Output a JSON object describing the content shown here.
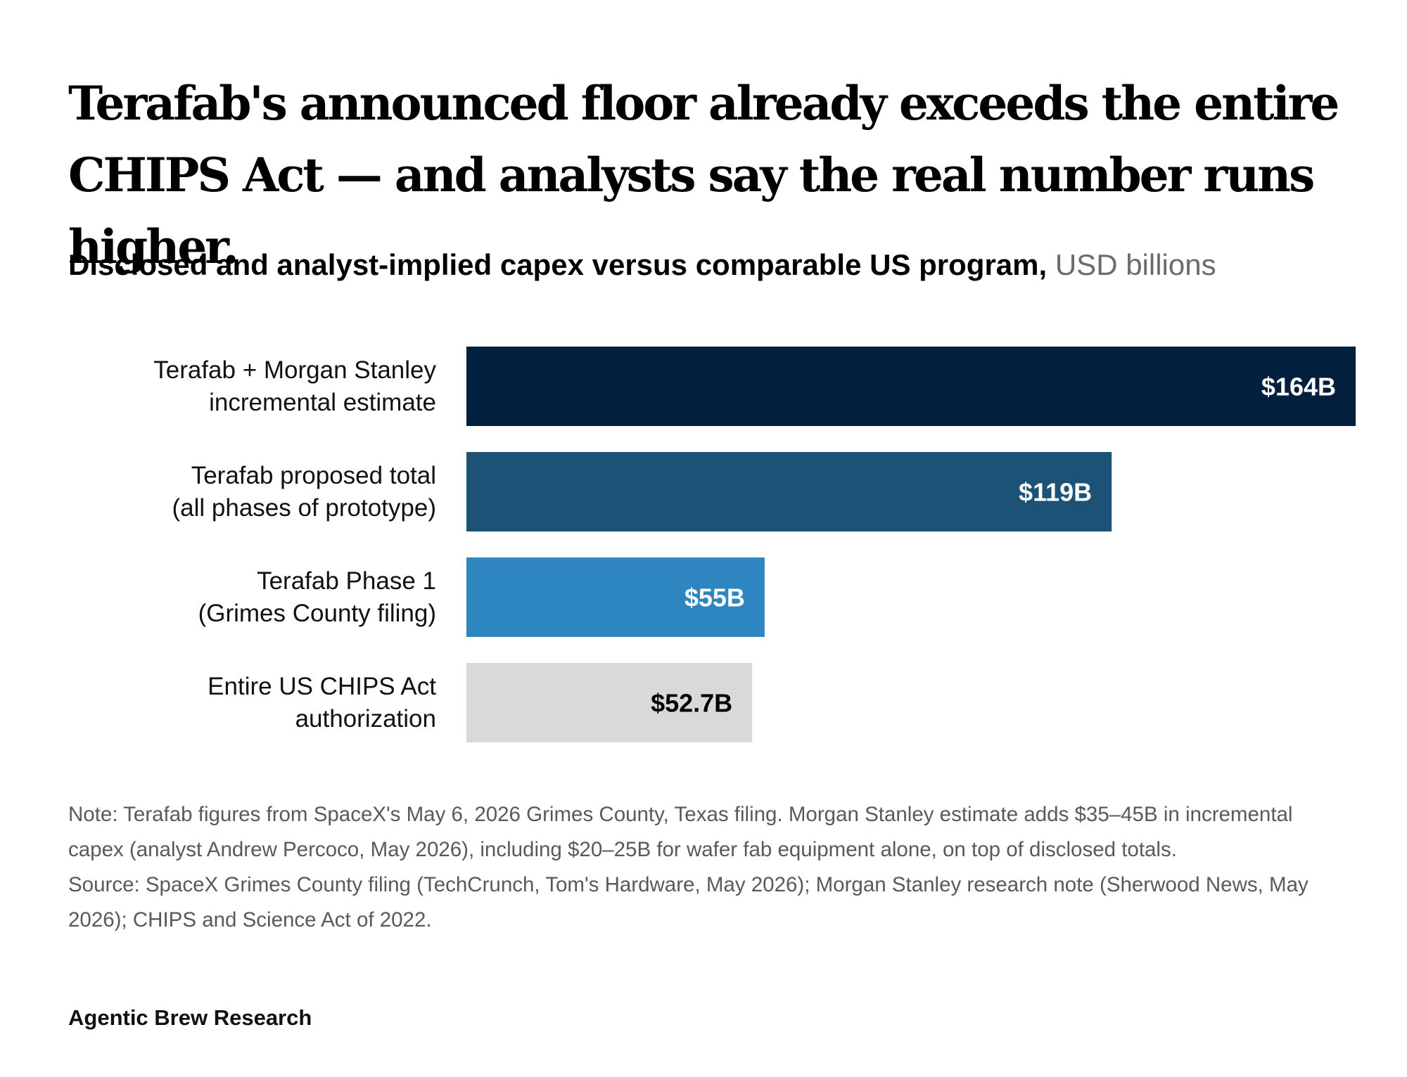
{
  "header": {
    "title": "Terafab's announced floor already exceeds the entire CHIPS Act — and analysts say the real number runs higher.",
    "subtitle": "Disclosed and analyst-implied capex versus comparable US program,",
    "unit": "USD billions"
  },
  "chart_data": {
    "type": "bar",
    "orientation": "horizontal",
    "categories": [
      [
        "Terafab + Morgan Stanley",
        "incremental estimate"
      ],
      [
        "Terafab proposed total",
        "(all phases of prototype)"
      ],
      [
        "Terafab Phase 1",
        "(Grimes County filing)"
      ],
      [
        "Entire US CHIPS Act",
        "authorization"
      ]
    ],
    "values": [
      164,
      119,
      55,
      52.7
    ],
    "value_labels": [
      "$164B",
      "$119B",
      "$55B",
      "$52.7B"
    ],
    "colors": [
      "#021f3e",
      "#1c5276",
      "#2e86c1",
      "#d9d9d9"
    ],
    "label_colors": [
      "#ffffff",
      "#ffffff",
      "#ffffff",
      "#000000"
    ],
    "xlim": [
      0,
      164
    ],
    "grid": false,
    "legend": "none"
  },
  "footer": {
    "note": "Note: Terafab figures from SpaceX's May 6, 2026 Grimes County, Texas filing. Morgan Stanley estimate adds $35–45B in incremental capex (analyst Andrew Percoco, May 2026), including $20–25B for wafer fab equipment alone, on top of disclosed totals.",
    "source": "Source: SpaceX Grimes County filing (TechCrunch, Tom's Hardware, May 2026); Morgan Stanley research note (Sherwood News, May 2026); CHIPS and Science Act of 2022.",
    "brand": "Agentic Brew Research"
  }
}
